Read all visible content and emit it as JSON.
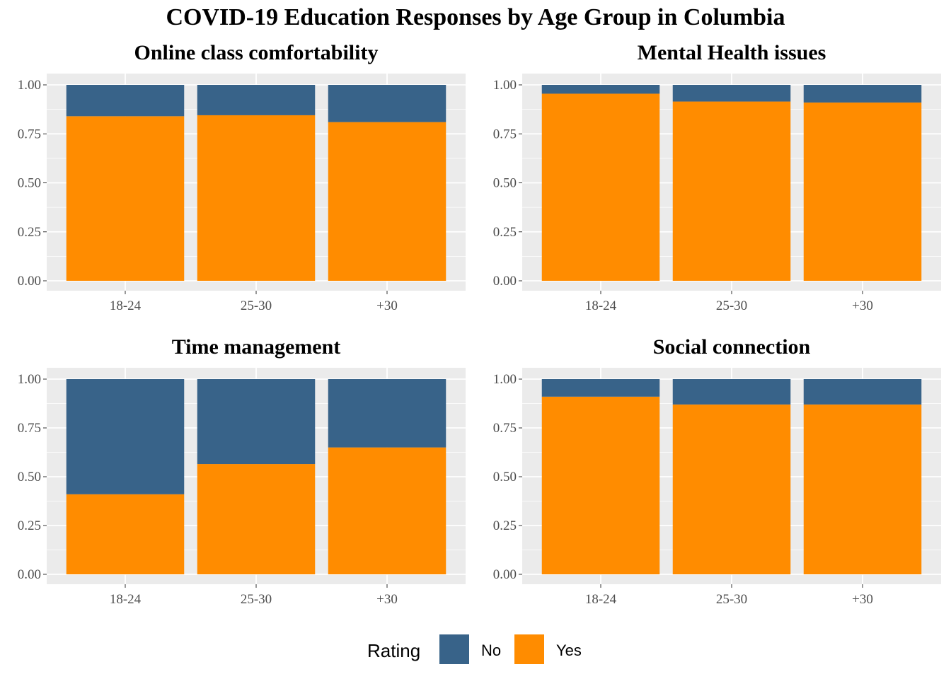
{
  "figure": {
    "title": "COVID-19 Education Responses by Age Group in Columbia"
  },
  "colors": {
    "No": "#386389",
    "Yes": "#ff8c00",
    "panel_bg": "#ebebeb",
    "grid": "#ffffff",
    "tick_text": "#4d4d4d"
  },
  "legend": {
    "title": "Rating",
    "items": [
      {
        "label": "No",
        "color": "#386389"
      },
      {
        "label": "Yes",
        "color": "#ff8c00"
      }
    ]
  },
  "chart_data": [
    {
      "type": "bar",
      "stacked": "fill",
      "title": "Online class comfortability",
      "categories": [
        "18-24",
        "25-30",
        "+30"
      ],
      "ylim": [
        0,
        1
      ],
      "yticks": [
        "0.00",
        "0.25",
        "0.50",
        "0.75",
        "1.00"
      ],
      "series": [
        {
          "name": "Yes",
          "values": [
            0.84,
            0.845,
            0.81
          ]
        },
        {
          "name": "No",
          "values": [
            0.16,
            0.155,
            0.19
          ]
        }
      ]
    },
    {
      "type": "bar",
      "stacked": "fill",
      "title": "Mental Health issues",
      "categories": [
        "18-24",
        "25-30",
        "+30"
      ],
      "ylim": [
        0,
        1
      ],
      "yticks": [
        "0.00",
        "0.25",
        "0.50",
        "0.75",
        "1.00"
      ],
      "series": [
        {
          "name": "Yes",
          "values": [
            0.955,
            0.915,
            0.91
          ]
        },
        {
          "name": "No",
          "values": [
            0.045,
            0.085,
            0.09
          ]
        }
      ]
    },
    {
      "type": "bar",
      "stacked": "fill",
      "title": "Time management",
      "categories": [
        "18-24",
        "25-30",
        "+30"
      ],
      "ylim": [
        0,
        1
      ],
      "yticks": [
        "0.00",
        "0.25",
        "0.50",
        "0.75",
        "1.00"
      ],
      "series": [
        {
          "name": "Yes",
          "values": [
            0.41,
            0.565,
            0.65
          ]
        },
        {
          "name": "No",
          "values": [
            0.59,
            0.435,
            0.35
          ]
        }
      ]
    },
    {
      "type": "bar",
      "stacked": "fill",
      "title": "Social connection",
      "categories": [
        "18-24",
        "25-30",
        "+30"
      ],
      "ylim": [
        0,
        1
      ],
      "yticks": [
        "0.00",
        "0.25",
        "0.50",
        "0.75",
        "1.00"
      ],
      "series": [
        {
          "name": "Yes",
          "values": [
            0.91,
            0.87,
            0.87
          ]
        },
        {
          "name": "No",
          "values": [
            0.09,
            0.13,
            0.13
          ]
        }
      ]
    }
  ]
}
